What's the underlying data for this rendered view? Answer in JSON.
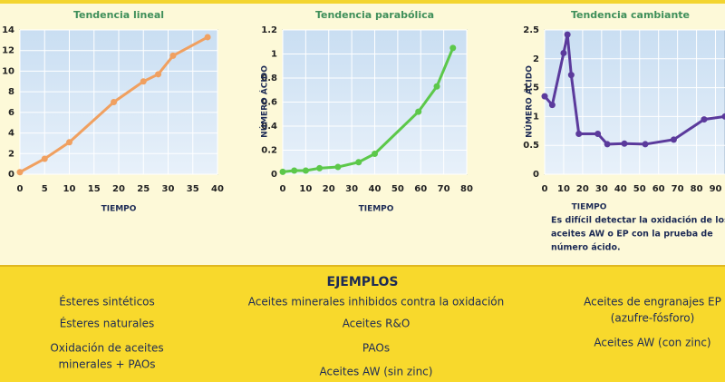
{
  "chart_data": [
    {
      "type": "line",
      "title": "Tendencia lineal",
      "x_label": "TIEMPO",
      "x": [
        0,
        5,
        10,
        19,
        25,
        28,
        31,
        38
      ],
      "series": [
        {
          "color": "#f0a060",
          "values": [
            0.2,
            1.5,
            3.1,
            7,
            9,
            9.7,
            11.5,
            13.3
          ]
        }
      ],
      "xlim": [
        0,
        40
      ],
      "xticks": [
        0,
        5,
        10,
        15,
        20,
        25,
        30,
        35,
        40
      ],
      "ylim": [
        0,
        14
      ],
      "yticks": [
        0,
        2,
        4,
        6,
        8,
        10,
        12,
        14
      ],
      "grid": true
    },
    {
      "type": "line",
      "title": "Tendencia parabólica",
      "x_label": "TIEMPO",
      "y_label": "NÚMERO ÁCIDO",
      "x": [
        0,
        5,
        10,
        16,
        24,
        33,
        40,
        59,
        67,
        74
      ],
      "series": [
        {
          "color": "#5cc84a",
          "values": [
            0.02,
            0.03,
            0.03,
            0.05,
            0.06,
            0.1,
            0.17,
            0.52,
            0.73,
            1.05
          ]
        }
      ],
      "xlim": [
        0,
        80
      ],
      "xticks": [
        0,
        10,
        20,
        30,
        40,
        50,
        60,
        70,
        80
      ],
      "ylim": [
        0,
        1.2
      ],
      "yticks": [
        0,
        0.2,
        0.4,
        0.6,
        0.8,
        1,
        1.2
      ],
      "grid": true
    },
    {
      "type": "line",
      "title": "Tendencia cambiante",
      "x_label": "TIEMPO",
      "y_label": "NÚMERO ÁCIDO",
      "x": [
        0,
        4,
        10,
        12,
        14,
        18,
        28,
        33,
        42,
        53,
        68,
        84,
        95
      ],
      "series": [
        {
          "color": "#5b3a9c",
          "values": [
            1.35,
            1.2,
            2.1,
            2.42,
            1.72,
            0.7,
            0.7,
            0.52,
            0.53,
            0.52,
            0.6,
            0.95,
            1.0
          ]
        }
      ],
      "xlim": [
        0,
        95
      ],
      "xticks": [
        0,
        10,
        20,
        30,
        40,
        50,
        60,
        70,
        80,
        90
      ],
      "ylim": [
        0,
        2.5
      ],
      "yticks": [
        0,
        0.5,
        1,
        1.5,
        2,
        2.5
      ],
      "grid": true,
      "annotation": [
        "Es difícil detectar la oxidación de los",
        "aceites AW o EP con la prueba de",
        "número ácido."
      ]
    }
  ],
  "examples": {
    "heading": "EJEMPLOS",
    "columns": [
      [
        [
          "Ésteres sintéticos"
        ],
        [
          "Ésteres naturales"
        ],
        [
          "Oxidación de aceites",
          "minerales + PAOs"
        ]
      ],
      [
        [
          "Aceites minerales inhibidos contra la oxidación"
        ],
        [
          "Aceites R&O"
        ],
        [
          "PAOs"
        ],
        [
          "Aceites AW (sin zinc)"
        ]
      ],
      [
        [
          "Aceites de engranajes EP",
          "(azufre-fósforo)"
        ],
        [
          "Aceites AW (con zinc)"
        ]
      ]
    ]
  }
}
